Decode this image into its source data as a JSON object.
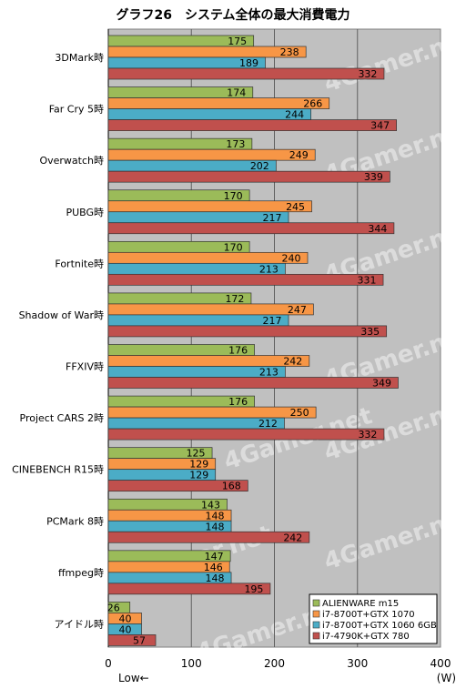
{
  "chart_data": {
    "type": "bar",
    "orientation": "horizontal",
    "title": "グラフ26　システム全体の最大消費電力",
    "xlabel_left": "Low←",
    "unit_label": "(W)",
    "xlim": [
      0,
      400
    ],
    "xticks": [
      0,
      100,
      200,
      300,
      400
    ],
    "grid": true,
    "legend_position": "bottom-right",
    "categories": [
      "3DMark時",
      "Far Cry 5時",
      "Overwatch時",
      "PUBG時",
      "Fortnite時",
      "Shadow of War時",
      "FFXIV時",
      "Project CARS 2時",
      "CINEBENCH R15時",
      "PCMark 8時",
      "ffmpeg時",
      "アイドル時"
    ],
    "series": [
      {
        "name": "ALIENWARE m15",
        "color": "#9bbb59",
        "values": [
          175,
          174,
          173,
          170,
          170,
          172,
          176,
          176,
          125,
          143,
          147,
          26
        ]
      },
      {
        "name": "i7-8700T+GTX 1070",
        "color": "#f79646",
        "values": [
          238,
          266,
          249,
          245,
          240,
          247,
          242,
          250,
          129,
          148,
          146,
          40
        ]
      },
      {
        "name": "i7-8700T+GTX 1060 6GB",
        "color": "#4bacc6",
        "values": [
          189,
          244,
          202,
          217,
          213,
          217,
          213,
          212,
          129,
          148,
          148,
          40
        ]
      },
      {
        "name": "i7-4790K+GTX 780",
        "color": "#c0504d",
        "values": [
          332,
          347,
          339,
          344,
          331,
          335,
          349,
          332,
          168,
          242,
          195,
          57
        ]
      }
    ],
    "watermark": "4Gamer.net"
  }
}
